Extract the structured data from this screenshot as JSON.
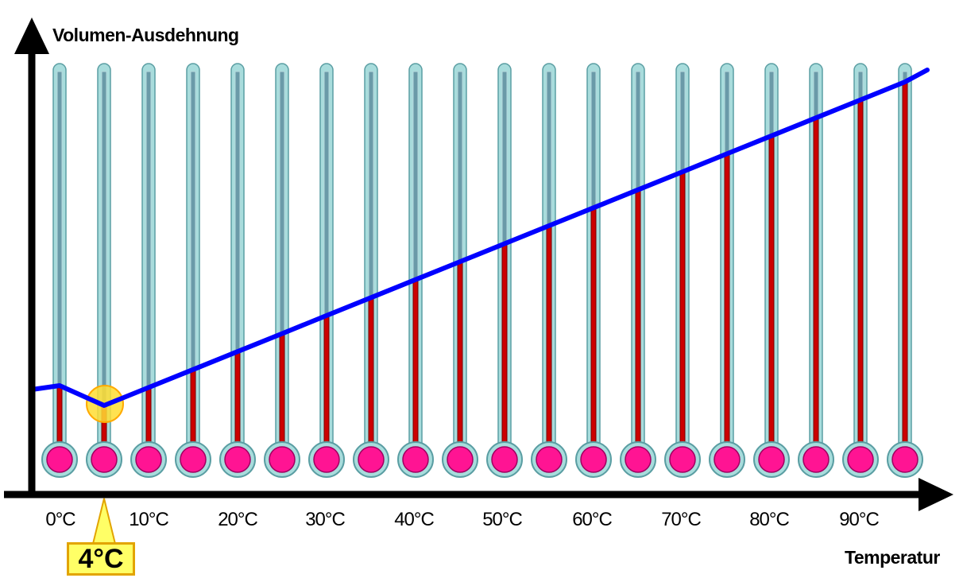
{
  "diagram": {
    "y_axis_label": "Volumen-Ausdehnung",
    "x_axis_label": "Temperatur",
    "x_ticks": [
      "0°C",
      "10°C",
      "20°C",
      "30°C",
      "40°C",
      "50°C",
      "60°C",
      "70°C",
      "80°C",
      "90°C"
    ],
    "callout": "4°C",
    "thermometer_count": 20,
    "colors": {
      "curve": "#0000ff",
      "liquid": "#cc0000",
      "bulb": "#ff1493",
      "glass": "#a8dcdc",
      "callout_fill": "#ffff66",
      "callout_border": "#e2a400",
      "highlight": "#ffdd33"
    }
  }
}
